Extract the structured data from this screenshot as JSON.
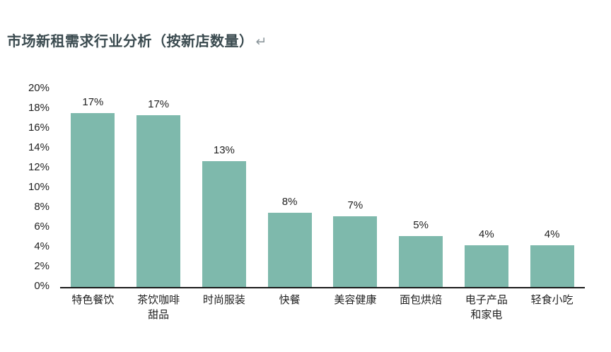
{
  "header": {
    "title": "市场新租需求行业分析（按新店数量）",
    "return_mark": "↵",
    "title_color": "#3A4A4F",
    "return_mark_color": "#8C979C"
  },
  "chart_data": {
    "type": "bar",
    "title": "市场新租需求行业分析（按新店数量）",
    "categories": [
      "特色餐饮",
      "茶饮咖啡甜品",
      "时尚服装",
      "快餐",
      "美容健康",
      "面包烘焙",
      "电子产品和家电",
      "轻食小吃"
    ],
    "category_lines": [
      [
        "特色餐饮"
      ],
      [
        "茶饮咖啡",
        "甜品"
      ],
      [
        "时尚服装"
      ],
      [
        "快餐"
      ],
      [
        "美容健康"
      ],
      [
        "面包烘焙"
      ],
      [
        "电子产品",
        "和家电"
      ],
      [
        "轻食小吃"
      ]
    ],
    "values": [
      17,
      17,
      13,
      8,
      7,
      5,
      4,
      4
    ],
    "data_labels": [
      "17%",
      "17%",
      "13%",
      "8%",
      "7%",
      "5%",
      "4%",
      "4%"
    ],
    "bar_heights_pct": [
      17.5,
      17.3,
      12.7,
      7.5,
      7.1,
      5.1,
      4.2,
      4.2
    ],
    "y_ticks": [
      "20%",
      "18%",
      "16%",
      "14%",
      "12%",
      "10%",
      "8%",
      "6%",
      "4%",
      "2%",
      "0%"
    ],
    "ylim": [
      0,
      20
    ],
    "xlabel": "",
    "ylabel": "",
    "grid": false,
    "legend": false,
    "bar_color": "#7EB9AC",
    "axis_line_color": "#1a1a1a",
    "label_color": "#1f1f1f"
  }
}
